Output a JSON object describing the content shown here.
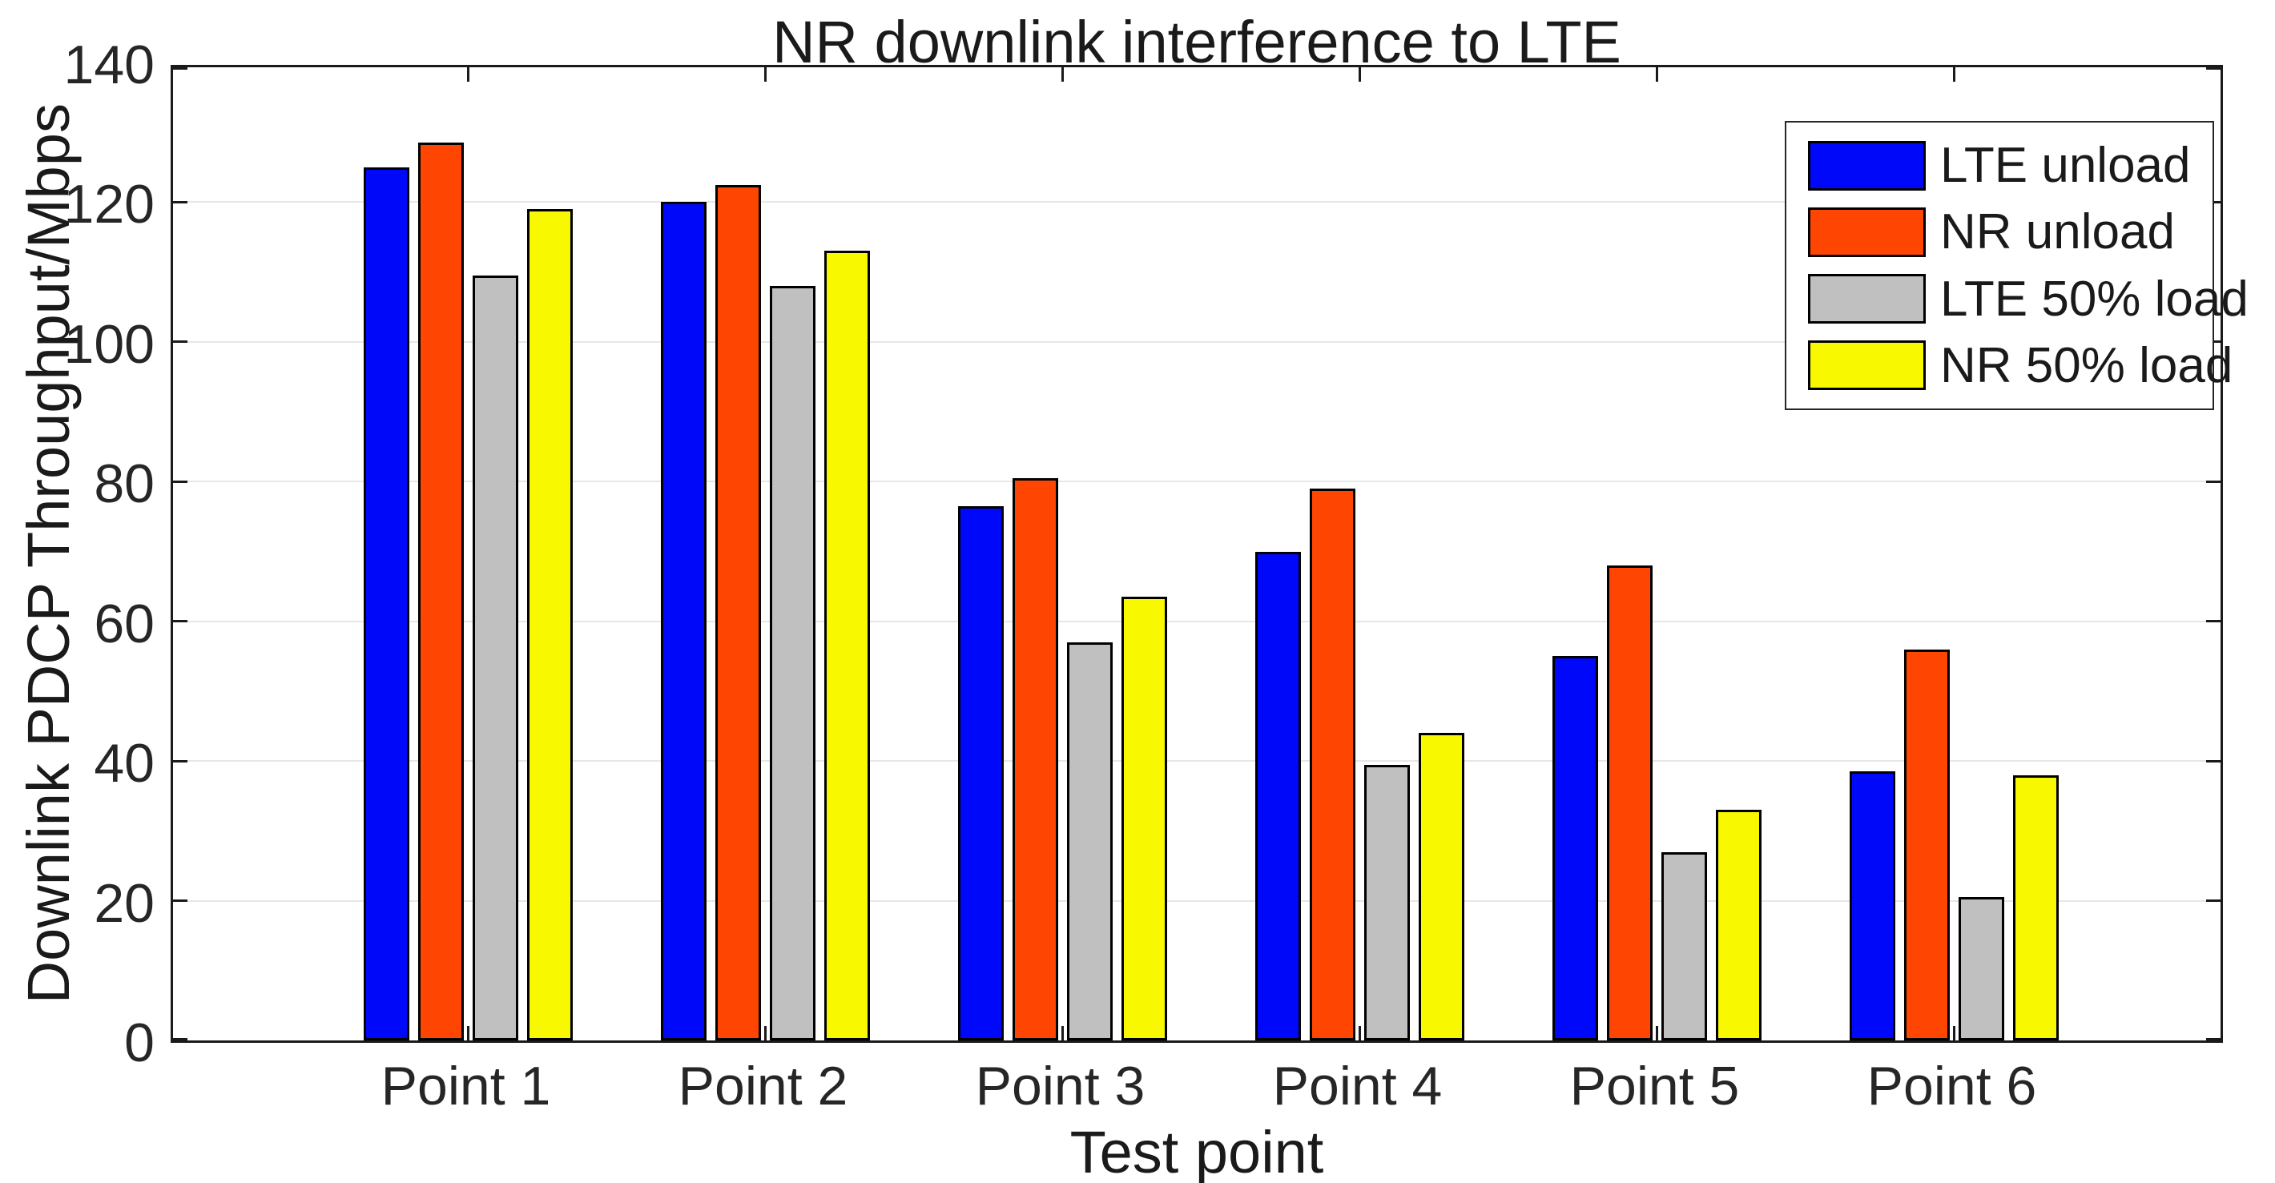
{
  "figure": {
    "title": "NR downlink interference to LTE"
  },
  "axes": {
    "xlabel": "Test point",
    "ylabel": "Downlink PDCP Throughput/Mbps",
    "ytick_labels": [
      "0",
      "20",
      "40",
      "60",
      "80",
      "100",
      "120",
      "140"
    ]
  },
  "legend": {
    "position": "upper right",
    "items": [
      "LTE unload",
      "NR unload",
      "LTE 50% load",
      "NR 50% load"
    ]
  },
  "chart_data": {
    "type": "bar",
    "title": "NR downlink interference to LTE",
    "xlabel": "Test point",
    "ylabel": "Downlink PDCP Throughput/Mbps",
    "categories": [
      "Point 1",
      "Point 2",
      "Point 3",
      "Point 4",
      "Point 5",
      "Point 6"
    ],
    "series": [
      {
        "name": "LTE unload",
        "color": "#0008fa",
        "values": [
          125.0,
          120.0,
          76.5,
          70.0,
          55.0,
          38.5
        ]
      },
      {
        "name": "NR unload",
        "color": "#fe4502",
        "values": [
          128.5,
          122.5,
          80.5,
          79.0,
          68.0,
          56.0
        ]
      },
      {
        "name": "LTE 50% load",
        "color": "#c0c0c0",
        "values": [
          109.5,
          108.0,
          57.0,
          39.5,
          27.0,
          20.5
        ]
      },
      {
        "name": "NR 50% load",
        "color": "#f8f800",
        "values": [
          119.0,
          113.0,
          63.5,
          44.0,
          33.0,
          38.0
        ]
      }
    ],
    "ylim": [
      0,
      140
    ],
    "yticks": [
      0,
      20,
      40,
      60,
      80,
      100,
      120,
      140
    ],
    "grid": "horizontal-only",
    "legend_position": "upper right",
    "bar_edge_color": "#000000"
  },
  "style_colors": {
    "grid": "#e7e7e7",
    "axis": "#1a1a1a",
    "text": "#262626",
    "background": "#ffffff"
  }
}
